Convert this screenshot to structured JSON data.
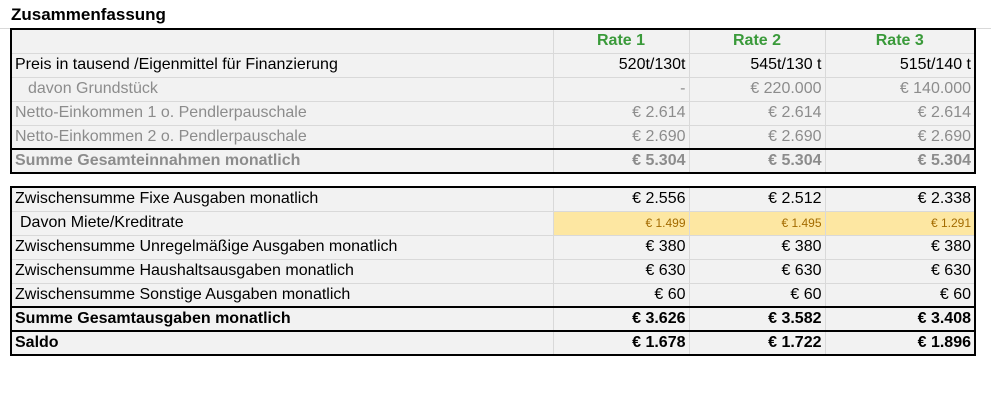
{
  "sheet": {
    "title": "Zusammenfassung",
    "columns": [
      "Rate 1",
      "Rate 2",
      "Rate 3"
    ],
    "income_rows": [
      {
        "label": "Preis in tausend /Eigenmittel für Finanzierung",
        "values": [
          "520t/130t",
          "545t/130 t",
          "515t/140 t"
        ],
        "style": "plain"
      },
      {
        "label": "davon Grundstück",
        "values": [
          "-",
          "€ 220.000",
          "€ 140.000"
        ],
        "style": "gray-indent"
      },
      {
        "label": "Netto-Einkommen 1 o. Pendlerpauschale",
        "values": [
          "€ 2.614",
          "€ 2.614",
          "€ 2.614"
        ],
        "style": "gray"
      },
      {
        "label": "Netto-Einkommen 2 o. Pendlerpauschale",
        "values": [
          "€ 2.690",
          "€ 2.690",
          "€ 2.690"
        ],
        "style": "gray"
      },
      {
        "label": "Summe Gesamteinnahmen monatlich",
        "values": [
          "€ 5.304",
          "€ 5.304",
          "€ 5.304"
        ],
        "style": "gray-bold"
      }
    ],
    "expense_rows": [
      {
        "label": "Zwischensumme Fixe Ausgaben monatlich",
        "values": [
          "€ 2.556",
          "€ 2.512",
          "€ 2.338"
        ],
        "style": "plain"
      },
      {
        "label": "Davon Miete/Kreditrate",
        "values": [
          "€ 1.499",
          "€ 1.495",
          "€ 1.291"
        ],
        "style": "highlight"
      },
      {
        "label": "Zwischensumme Unregelmäßige Ausgaben monatlich",
        "values": [
          "€ 380",
          "€ 380",
          "€ 380"
        ],
        "style": "plain"
      },
      {
        "label": "Zwischensumme Haushaltsausgaben monatlich",
        "values": [
          "€ 630",
          "€ 630",
          "€ 630"
        ],
        "style": "plain"
      },
      {
        "label": "Zwischensumme Sonstige Ausgaben monatlich",
        "values": [
          "€ 60",
          "€ 60",
          "€ 60"
        ],
        "style": "plain"
      },
      {
        "label": "Summe Gesamtausgaben monatlich",
        "values": [
          "€ 3.626",
          "€ 3.582",
          "€ 3.408"
        ],
        "style": "bold"
      },
      {
        "label": "Saldo",
        "values": [
          "€ 1.678",
          "€ 1.722",
          "€ 1.896"
        ],
        "style": "bold"
      }
    ],
    "colors": {
      "header_text": "#3a9a3a",
      "highlight_bg": "#fde7a2",
      "highlight_text": "#a36b00",
      "muted_text": "#8c8c8c"
    }
  }
}
